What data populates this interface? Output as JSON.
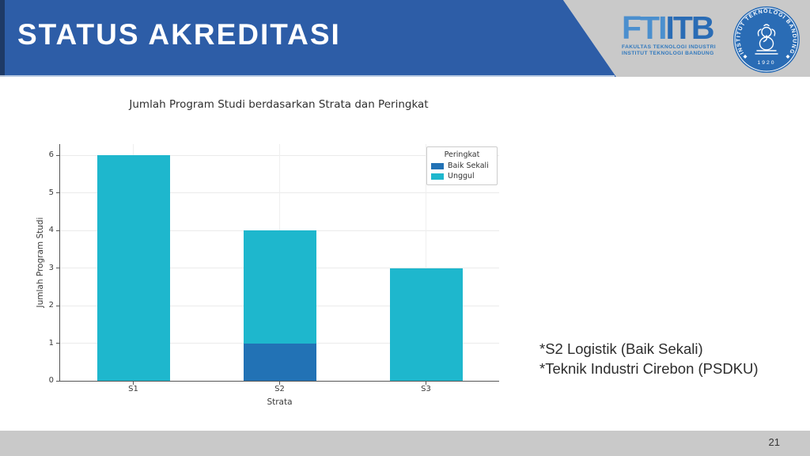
{
  "header": {
    "title": "STATUS AKREDITASI"
  },
  "branding": {
    "logo_part1": "FTI",
    "logo_part2": "ITB",
    "caption_line1": "FAKULTAS TEKNOLOGI INDUSTRI",
    "caption_line2": "INSTITUT TEKNOLOGI BANDUNG",
    "seal_text": "INSTITUT TEKNOLOGI BANDUNG",
    "seal_year": "1920"
  },
  "chart_data": {
    "type": "bar",
    "stacked": true,
    "title": "Jumlah Program Studi berdasarkan Strata dan Peringkat",
    "xlabel": "Strata",
    "ylabel": "Jumlah Program Studi",
    "categories": [
      "S1",
      "S2",
      "S3"
    ],
    "series": [
      {
        "name": "Baik Sekali",
        "color": "#2272b5",
        "values": [
          0,
          1,
          0
        ]
      },
      {
        "name": "Unggul",
        "color": "#1eb7cd",
        "values": [
          6,
          3,
          3
        ]
      }
    ],
    "totals": [
      6,
      4,
      3
    ],
    "yticks": [
      0,
      1,
      2,
      3,
      4,
      5,
      6
    ],
    "ylim": [
      0,
      6.3
    ],
    "grid": true,
    "legend_title": "Peringkat",
    "legend_position": "upper right"
  },
  "annotations": {
    "line1": "*S2 Logistik (Baik Sekali)",
    "line2": "*Teknik Industri Cirebon (PSDKU)"
  },
  "footer": {
    "page_number": "21"
  },
  "colors": {
    "banner_blue": "#2d5da7",
    "banner_navy": "#1e3a66",
    "banner_edge_light": "#cfdaeb",
    "panel_gray": "#c9c9c9",
    "footer_gray": "#c9c9c9",
    "logo_light_blue": "#4b8fce",
    "logo_dark_blue": "#2a6cb5",
    "seal_blue": "#2a6cb5",
    "bar_baik_sekali": "#2272b5",
    "bar_unggul": "#1eb7cd"
  }
}
